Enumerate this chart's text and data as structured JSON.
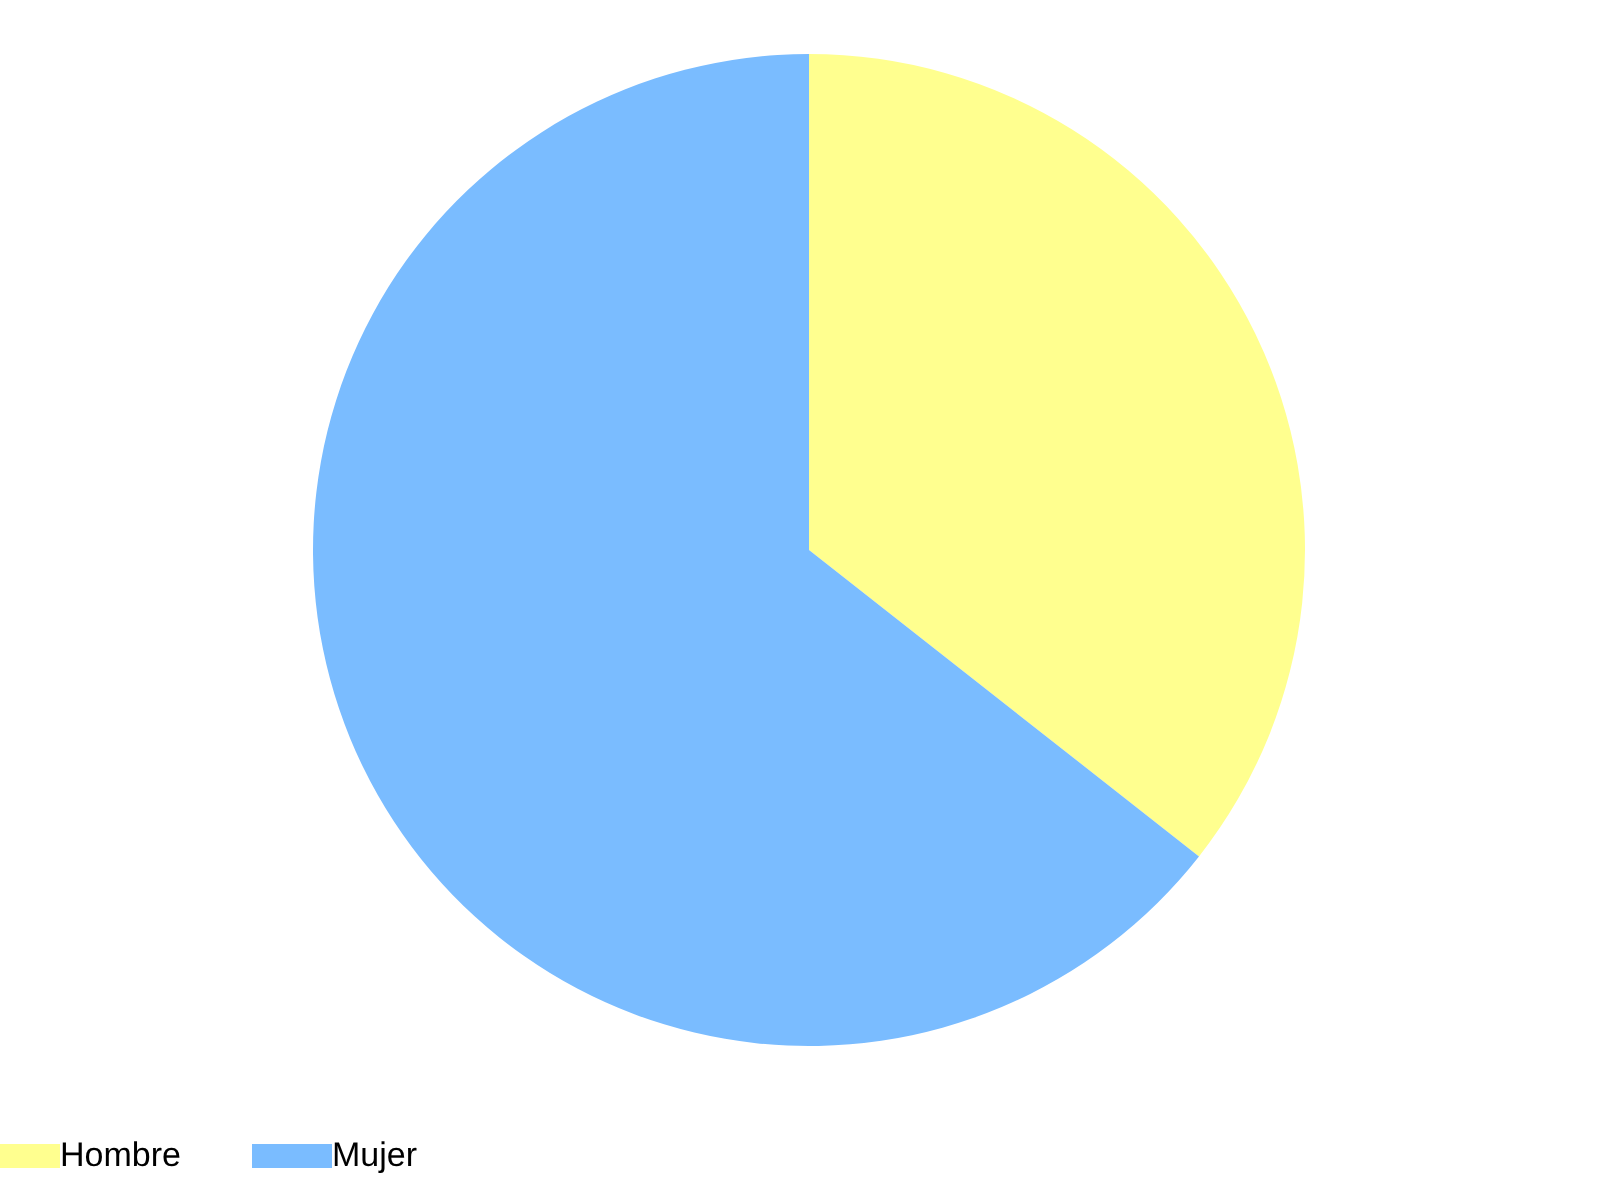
{
  "chart_data": {
    "type": "pie",
    "categories": [
      "Hombre",
      "Mujer"
    ],
    "values": [
      35.6,
      64.4
    ],
    "colors": [
      "#ffff8f",
      "#7abcff"
    ],
    "legend": "bottom"
  }
}
